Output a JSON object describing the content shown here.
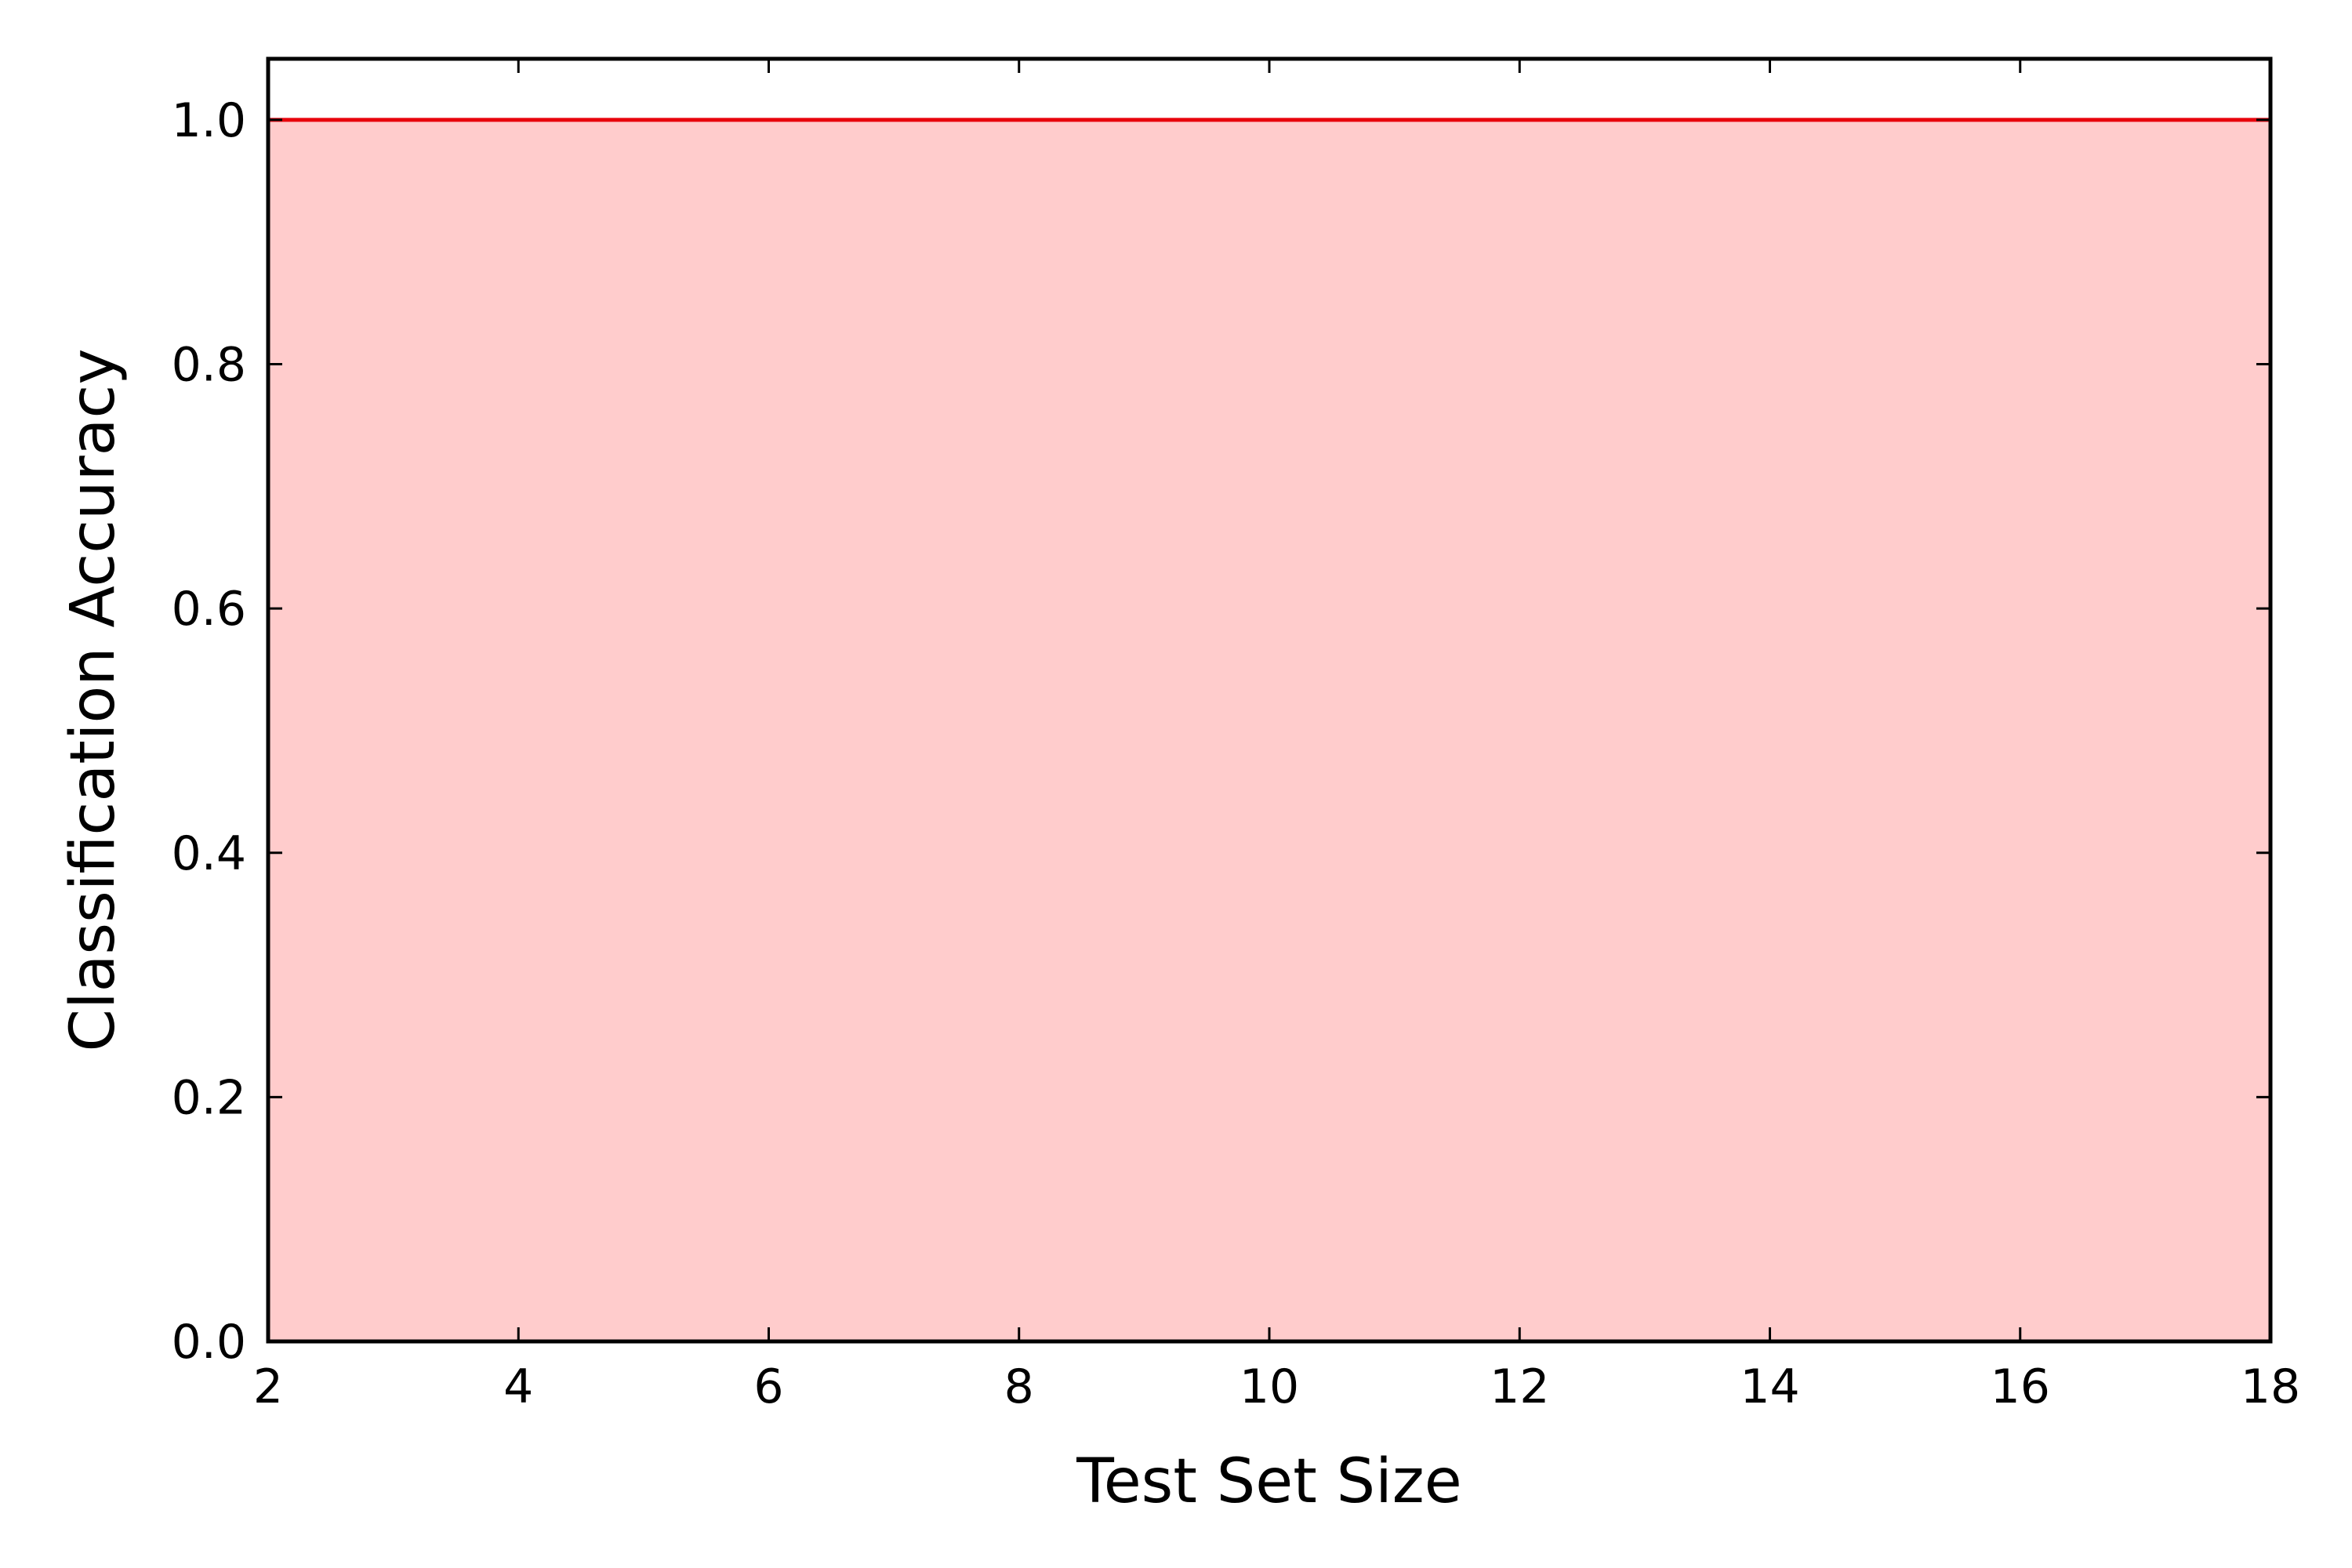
{
  "chart_data": {
    "type": "area",
    "title": "",
    "xlabel": "Test Set Size",
    "ylabel": "Classification Accuracy",
    "xlim": [
      2,
      18
    ],
    "ylim": [
      0.0,
      1.05
    ],
    "x_ticks": [
      2,
      4,
      6,
      8,
      10,
      12,
      14,
      16,
      18
    ],
    "y_ticks": [
      0.0,
      0.2,
      0.4,
      0.6,
      0.8,
      1.0
    ],
    "x_tick_labels": [
      "2",
      "4",
      "6",
      "8",
      "10",
      "12",
      "14",
      "16",
      "18"
    ],
    "y_tick_labels": [
      "0.0",
      "0.2",
      "0.4",
      "0.6",
      "0.8",
      "1.0"
    ],
    "grid": false,
    "series": [
      {
        "x": [
          2,
          4,
          6,
          8,
          10,
          12,
          14,
          16,
          18
        ],
        "values": [
          1.0,
          1.0,
          1.0,
          1.0,
          1.0,
          1.0,
          1.0,
          1.0,
          1.0
        ],
        "line_color": "#e8000b",
        "fill_color": "#ffcccc"
      }
    ]
  }
}
